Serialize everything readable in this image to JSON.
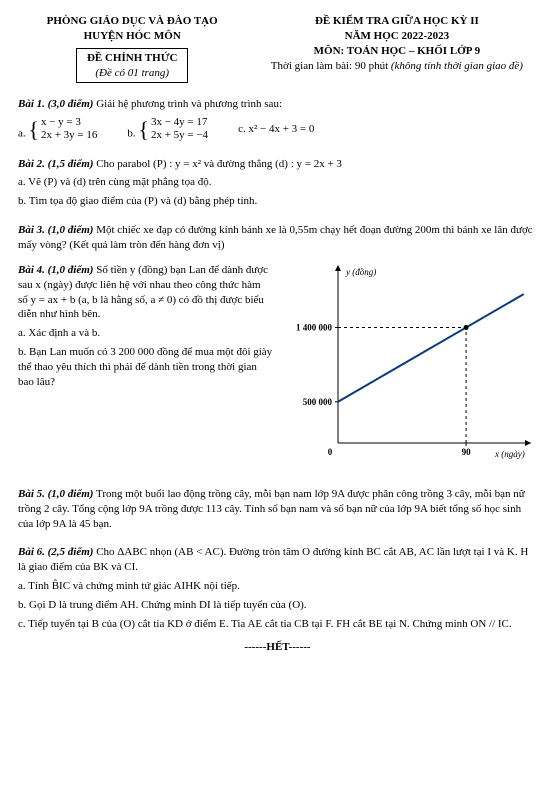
{
  "header": {
    "left_line1": "PHÒNG GIÁO DỤC VÀ ĐÀO TẠO",
    "left_line2": "HUYỆN HÓC MÔN",
    "box_line1": "ĐỀ CHÍNH THỨC",
    "box_line2": "(Đề có 01 trang)",
    "right_line1": "ĐỀ KIỂM TRA GIỮA HỌC KỲ II",
    "right_line2": "NĂM HỌC 2022-2023",
    "right_line3": "MÔN: TOÁN HỌC – KHỐI LỚP 9",
    "right_line4_a": "Thời gian làm bài: 90 phút ",
    "right_line4_b": "(không tính thời gian giao đề)"
  },
  "bai1": {
    "title": "Bài 1. (3,0 điểm)",
    "prompt": " Giải hệ phương trình và phương trình sau:",
    "a_label": "a.",
    "a_eq1": "x − y = 3",
    "a_eq2": "2x + 3y = 16",
    "b_label": "b.",
    "b_eq1": "3x − 4y = 17",
    "b_eq2": "2x + 5y = −4",
    "c_label": "c. x² − 4x + 3 = 0"
  },
  "bai2": {
    "title": "Bài 2. (1,5 điểm)",
    "prompt": " Cho parabol (P) : y = x² và đường thẳng (d) : y = 2x + 3",
    "a": "a. Vẽ (P) và (d) trên cùng mặt phẳng tọa độ.",
    "b": "b. Tìm tọa độ giao điểm của (P) và (d) bằng phép tính."
  },
  "bai3": {
    "title": "Bài 3. (1,0 điểm)",
    "prompt": " Một chiếc xe đạp có đường kính bánh xe là 0,55m chạy hết đoạn đường 200m thì bánh xe lăn được mấy vòng? (Kết quả làm tròn đến hàng đơn vị)"
  },
  "bai4": {
    "title": "Bài 4. (1,0 điểm)",
    "prompt": " Số tiền y (đồng) bạn Lan để dành được sau x (ngày) được liên hệ với nhau theo công thức hàm số y = ax + b (a, b là hằng số, a ≠ 0) có đồ thị được biểu diễn như hình bên.",
    "a": "a. Xác định a và b.",
    "b": "b. Bạn Lan muốn có 3 200 000 đồng để mua một đôi giày thể thao yêu thích thì phải để dành tiền trong thời gian bao lâu?"
  },
  "chart": {
    "type": "line",
    "y_axis_label": "y (đồng)",
    "x_axis_label": "x (ngày)",
    "y_ticks": [
      "500 000",
      "1 400 000"
    ],
    "y_tick_positions": [
      500000,
      1400000
    ],
    "x_ticks": [
      "0",
      "90"
    ],
    "x_tick_positions": [
      0,
      90
    ],
    "line_points": [
      [
        0,
        500000
      ],
      [
        90,
        1400000
      ]
    ],
    "line_extends_beyond": true,
    "line_color": "#0a3a7a",
    "axis_color": "#000000",
    "dash_color": "#000000",
    "background_color": "#ffffff",
    "xlim": [
      0,
      130
    ],
    "ylim": [
      0,
      2000000
    ],
    "marker_at": [
      90,
      1400000
    ],
    "label_fontsize": 9
  },
  "bai5": {
    "title": "Bài 5. (1,0 điểm)",
    "prompt": " Trong một buổi lao động trồng cây, mỗi bạn nam lớp 9A được phân công trồng 3 cây, mỗi bạn nữ trồng 2 cây. Tổng cộng lớp 9A trồng được 113 cây. Tính số bạn nam và số bạn nữ của lớp 9A biết tổng số học sinh của lớp 9A là 45 bạn."
  },
  "bai6": {
    "title": "Bài 6. (2,5 điểm)",
    "prompt": " Cho ΔABC nhọn (AB < AC). Đường tròn tâm O đường kính BC cắt AB, AC lần lượt tại I và K. H là giao điểm của BK và CI.",
    "a": "a. Tính B̂IC và chứng minh tứ giác AIHK nội tiếp.",
    "b": "b. Gọi D là trung điểm AH. Chứng minh DI là tiếp tuyến của (O).",
    "c": "c. Tiếp tuyến tại B của (O) cắt tia KD ở điểm E. Tia AE cắt tia CB tại F. FH cắt BE tại N. Chứng minh ON // IC."
  },
  "footer": "------HẾT------"
}
